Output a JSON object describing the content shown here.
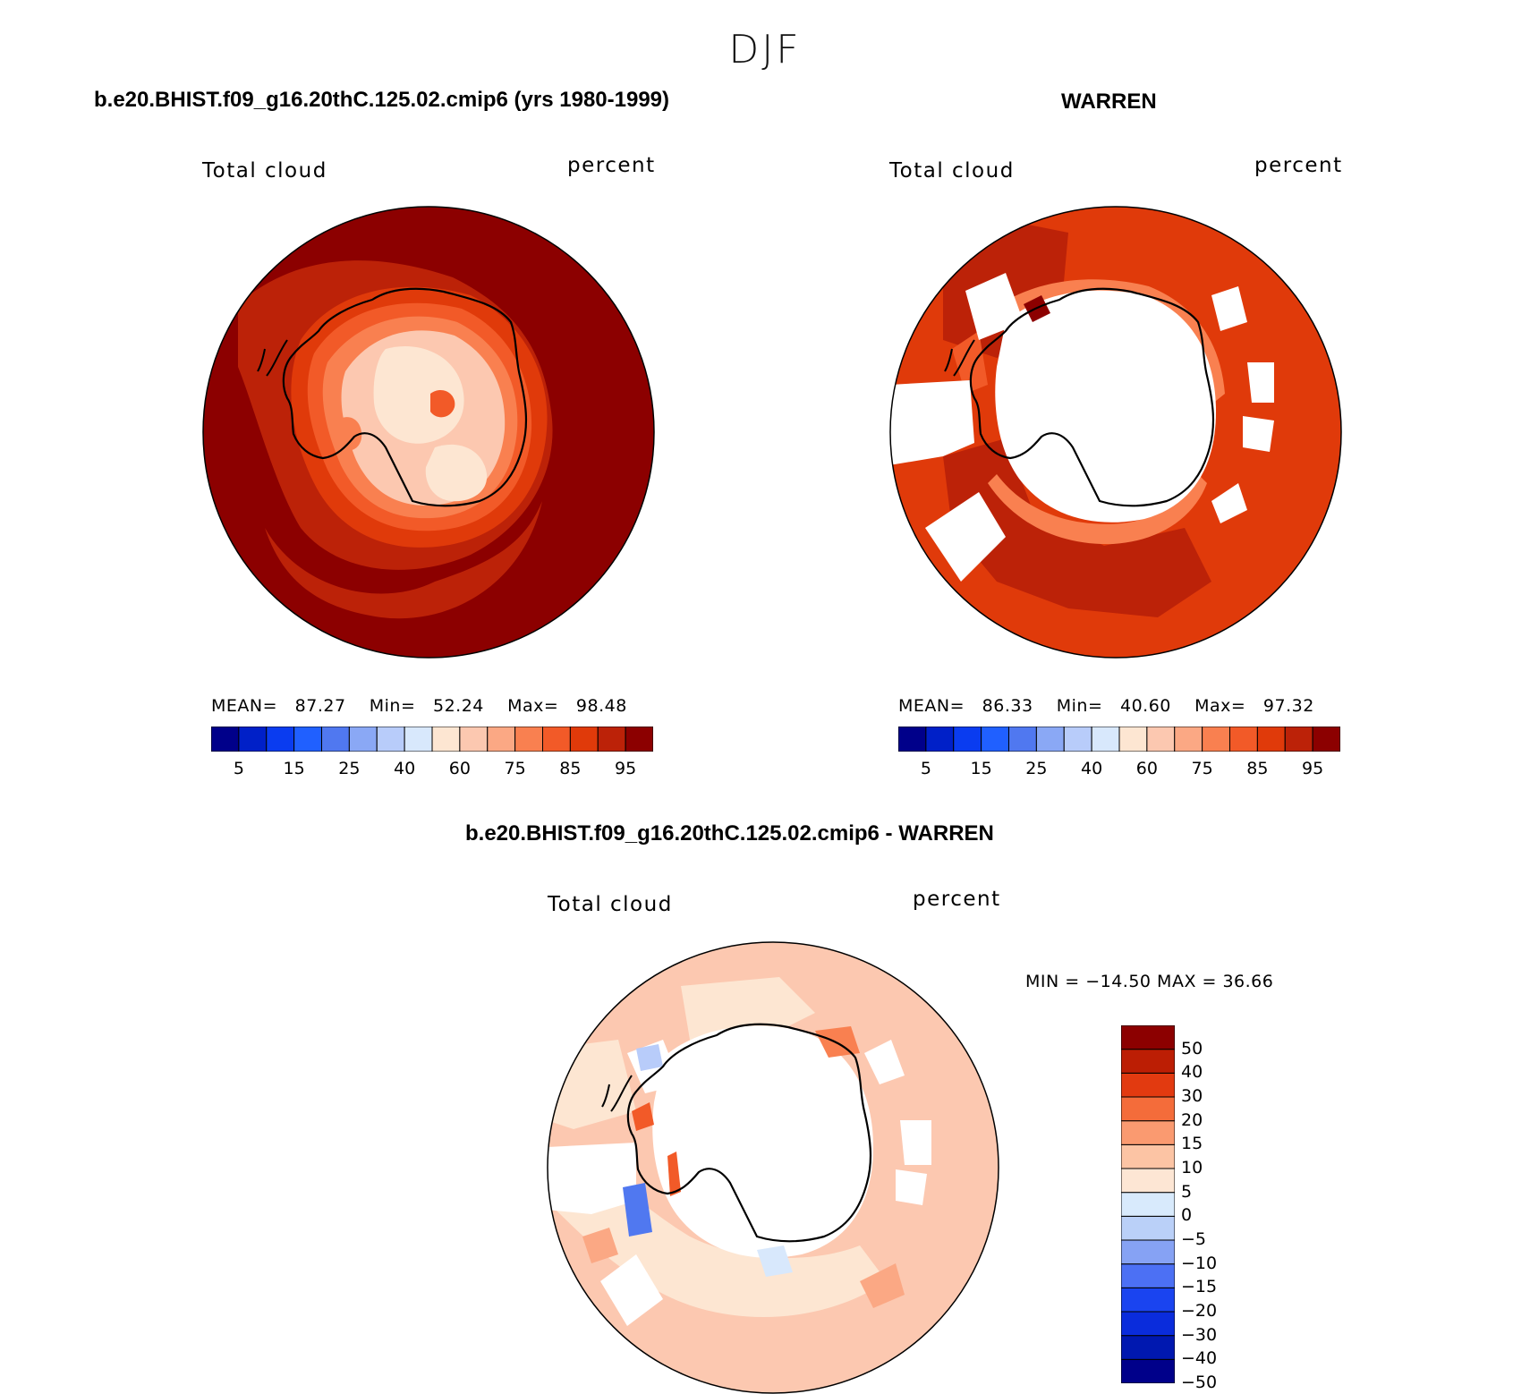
{
  "season": "DJF",
  "panels": [
    {
      "title": "b.e20.BHIST.f09_g16.20thC.125.02.cmip6 (yrs 1980-1999)",
      "left_label": "Total cloud",
      "right_label": "percent",
      "stats": {
        "mean_label": "MEAN=",
        "mean": "87.27",
        "min_label": "Min=",
        "min": "52.24",
        "max_label": "Max=",
        "max": "98.48"
      }
    },
    {
      "title": "WARREN",
      "left_label": "Total cloud",
      "right_label": "percent",
      "stats": {
        "mean_label": "MEAN=",
        "mean": "86.33",
        "min_label": "Min=",
        "min": "40.60",
        "max_label": "Max=",
        "max": "97.32"
      }
    },
    {
      "title": "b.e20.BHIST.f09_g16.20thC.125.02.cmip6 - WARREN",
      "left_label": "Total cloud",
      "right_label": "percent",
      "minmax": "MIN = −14.50 MAX =   36.66"
    }
  ],
  "colorbar_abs": {
    "colors": [
      "#00008a",
      "#0020c8",
      "#0a3cf0",
      "#2060ff",
      "#5078f0",
      "#8aa8f5",
      "#b8ccfa",
      "#d8e8fc",
      "#fde6d2",
      "#fcc8b0",
      "#fba884",
      "#f98050",
      "#f25a28",
      "#e03a0a",
      "#bc2208",
      "#8c0000"
    ],
    "labels": [
      "5",
      "15",
      "25",
      "40",
      "60",
      "75",
      "85",
      "95"
    ]
  },
  "colorbar_diff": {
    "colors": [
      "#00008a",
      "#0018b0",
      "#0a2cdc",
      "#1a44f0",
      "#4c70f4",
      "#86a2f4",
      "#bad0f8",
      "#d8eafc",
      "#fde6d4",
      "#fcc4a4",
      "#fa9a70",
      "#f46c3a",
      "#e23a10",
      "#bc1e04",
      "#8c0000"
    ],
    "labels": [
      "50",
      "40",
      "30",
      "20",
      "15",
      "10",
      "5",
      "0",
      "−5",
      "−10",
      "−15",
      "−20",
      "−30",
      "−40",
      "−50"
    ]
  },
  "map_colors": {
    "p1_bg": "#8c0000",
    "p2_bg": "#e03a0a",
    "p3_bg": "#fcc8b0"
  }
}
